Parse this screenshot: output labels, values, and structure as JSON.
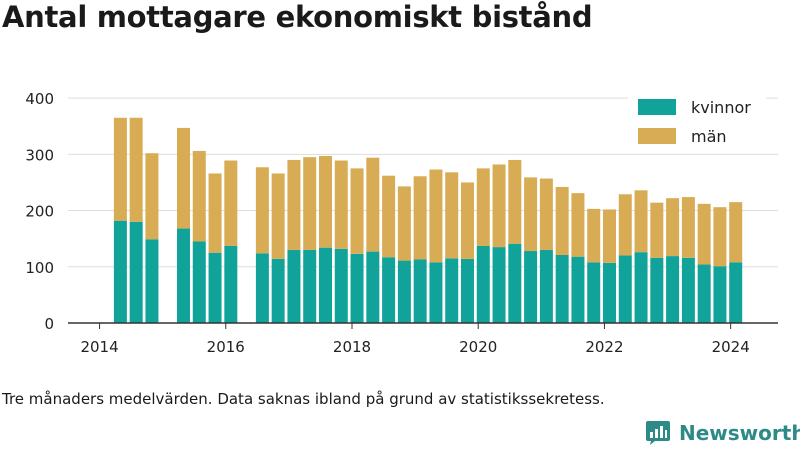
{
  "title": "Antal mottagare ekonomiskt bistånd",
  "note": "Tre månaders medelvärden. Data saknas ibland på grund av statistikssekretess.",
  "brand": {
    "name": "Newsworthy",
    "color": "#2e8a87",
    "icon": "bar-chart-speech-bubble-icon"
  },
  "colors": {
    "kvinnor": "#11a39a",
    "man": "#d8ac55",
    "axis": "#333333",
    "grid": "#dddddd"
  },
  "chart_data": {
    "type": "bar",
    "stacked": true,
    "title": "Antal mottagare ekonomiskt bistånd",
    "xlabel": "",
    "ylabel": "",
    "ylim": [
      0,
      450
    ],
    "yticks": [
      0,
      100,
      200,
      300,
      400
    ],
    "xticks": [
      "2014",
      "2016",
      "2018",
      "2020",
      "2022",
      "2024"
    ],
    "xlim": [
      2013.5,
      2024.75
    ],
    "grid": true,
    "legend_position": "top-right",
    "x": [
      2014.33,
      2014.58,
      2014.83,
      2015.33,
      2015.58,
      2015.83,
      2016.08,
      2016.58,
      2016.83,
      2017.08,
      2017.33,
      2017.58,
      2017.83,
      2018.08,
      2018.33,
      2018.58,
      2018.83,
      2019.08,
      2019.33,
      2019.58,
      2019.83,
      2020.08,
      2020.33,
      2020.58,
      2020.83,
      2021.08,
      2021.33,
      2021.58,
      2021.83,
      2022.08,
      2022.33,
      2022.58,
      2022.83,
      2023.08,
      2023.33,
      2023.58,
      2023.83,
      2024.08
    ],
    "series": [
      {
        "name": "kvinnor",
        "values": [
          182,
          180,
          149,
          168,
          145,
          125,
          137,
          124,
          114,
          130,
          130,
          134,
          132,
          123,
          127,
          117,
          111,
          113,
          108,
          115,
          114,
          137,
          135,
          141,
          128,
          130,
          121,
          118,
          108,
          107,
          120,
          126,
          116,
          119,
          116,
          104,
          101,
          108
        ]
      },
      {
        "name": "män",
        "values": [
          183,
          185,
          153,
          179,
          161,
          141,
          152,
          153,
          152,
          160,
          165,
          163,
          157,
          152,
          167,
          145,
          132,
          148,
          165,
          153,
          136,
          138,
          147,
          149,
          131,
          127,
          121,
          113,
          95,
          95,
          109,
          110,
          98,
          103,
          108,
          108,
          105,
          107
        ]
      }
    ],
    "legend": [
      "kvinnor",
      "män"
    ]
  }
}
